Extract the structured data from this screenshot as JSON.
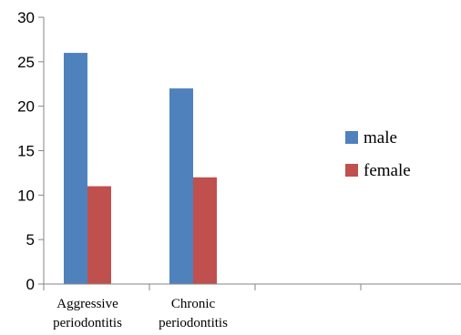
{
  "chart_data": {
    "type": "bar",
    "categories": [
      [
        "Aggressive",
        "periodontitis"
      ],
      [
        "Chronic",
        "periodontitis"
      ],
      [
        ""
      ],
      [
        ""
      ]
    ],
    "series": [
      {
        "name": "male",
        "values": [
          26,
          22,
          null,
          null
        ],
        "color": "#4f81bd"
      },
      {
        "name": "female",
        "values": [
          11,
          12,
          null,
          null
        ],
        "color": "#c0504d"
      }
    ],
    "ylim": [
      0,
      30
    ],
    "yticks": [
      0,
      5,
      10,
      15,
      20,
      25,
      30
    ],
    "grid": false,
    "legend_position": "right"
  }
}
